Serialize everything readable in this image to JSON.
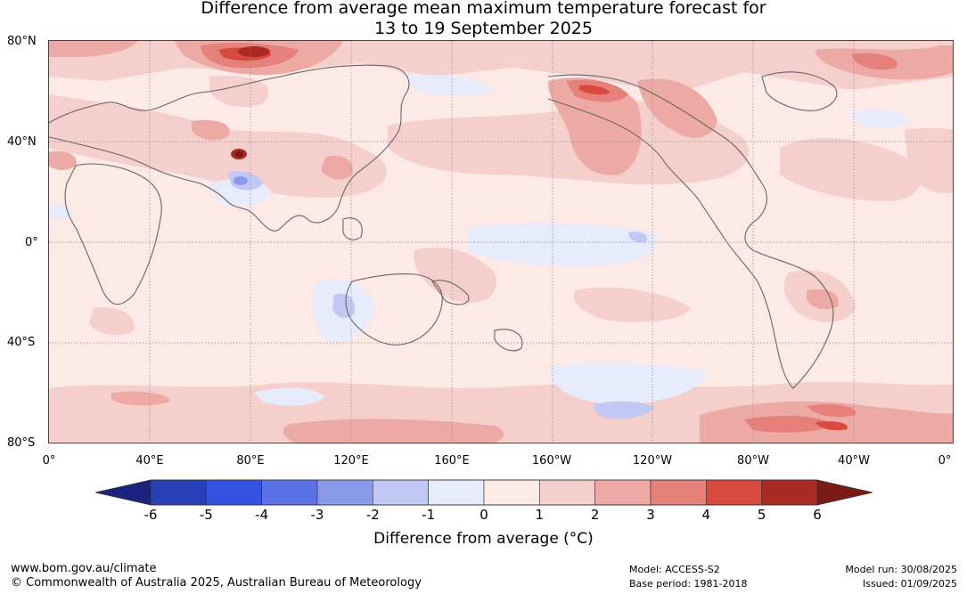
{
  "title": {
    "line1": "Difference from average mean maximum temperature forecast for",
    "line2": "13 to 19 September 2025"
  },
  "axes": {
    "lat_labels": [
      "80°N",
      "40°N",
      "0°",
      "40°S",
      "80°S"
    ],
    "lon_labels": [
      "0°",
      "40°E",
      "80°E",
      "120°E",
      "160°E",
      "160°W",
      "120°W",
      "80°W",
      "40°W",
      "0°"
    ]
  },
  "legend": {
    "ticks": [
      "-6",
      "-5",
      "-4",
      "-3",
      "-2",
      "-1",
      "0",
      "1",
      "2",
      "3",
      "4",
      "5",
      "6"
    ],
    "colors": [
      "#1a237e",
      "#283fb5",
      "#3352e0",
      "#5b72e6",
      "#8a9aeb",
      "#c0c8f3",
      "#e8ebfb",
      "#fde9e6",
      "#f5cfcb",
      "#edaaa5",
      "#e5807a",
      "#d94a3e",
      "#a82a22",
      "#7a1a15"
    ],
    "label": "Difference from average (°C)"
  },
  "footer": {
    "website": "www.bom.gov.au/climate",
    "copyright": "© Commonwealth of Australia 2025, Australian Bureau of Meteorology",
    "model": "Model: ACCESS-S2",
    "base_period": "Base period: 1981-2018",
    "model_run": "Model run: 30/08/2025",
    "issued": "Issued: 01/09/2025"
  }
}
